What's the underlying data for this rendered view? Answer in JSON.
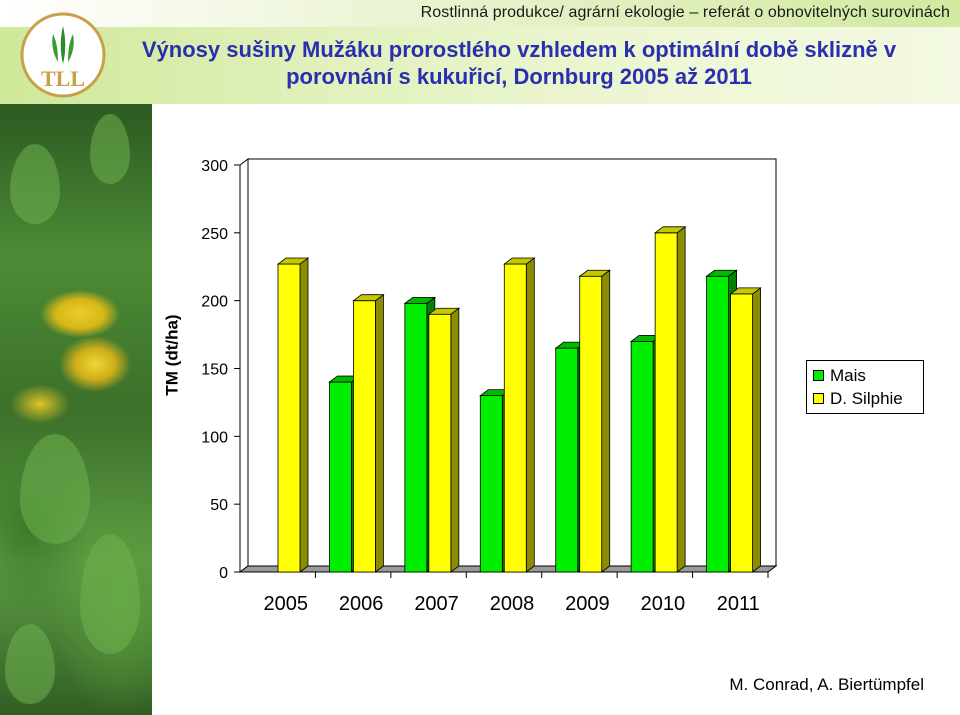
{
  "header": {
    "topline": "Rostlinná produkce/ agrární ekologie – referát o obnovitelných surovinách",
    "title": "Výnosy sušiny Mužáku prorostlého vzhledem k optimální době sklizně v porovnání s kukuřicí, Dornburg 2005 až 2011",
    "logo_text": "TLL"
  },
  "chart_data": {
    "type": "bar",
    "title": "",
    "xlabel": "",
    "ylabel": "TM (dt/ha)",
    "categories": [
      "2005",
      "2006",
      "2007",
      "2008",
      "2009",
      "2010",
      "2011"
    ],
    "series": [
      {
        "name": "Mais",
        "color": "#00ee00",
        "values": [
          null,
          140,
          198,
          130,
          165,
          170,
          218
        ]
      },
      {
        "name": "D. Silphie",
        "color": "#ffff00",
        "values": [
          227,
          200,
          190,
          227,
          218,
          250,
          205
        ]
      }
    ],
    "ylim": [
      0,
      300
    ],
    "yticks": [
      "0",
      "50",
      "100",
      "150",
      "200",
      "250",
      "300"
    ],
    "grid": false,
    "legend": "right"
  },
  "colors": {
    "title": "#2a2fb0",
    "mais": "#00ee00",
    "silphie": "#ffff00"
  },
  "footer": {
    "authors": "M. Conrad, A. Biertümpfel"
  }
}
